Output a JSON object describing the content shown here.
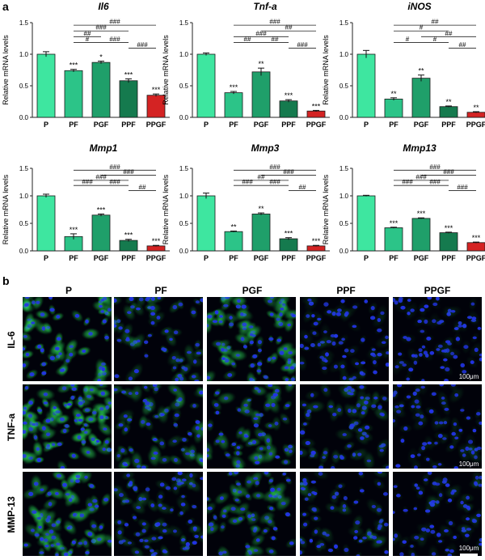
{
  "figure": {
    "panel_a_label": "a",
    "panel_b_label": "b"
  },
  "colors": {
    "P": "#3ee6a0",
    "PF": "#2cc488",
    "PGF": "#1f9f6a",
    "PPF": "#157a4e",
    "PPGF": "#d42323",
    "cell_green": "#1ec84a",
    "nucleus_blue": "#2233e6"
  },
  "chart_data": [
    {
      "type": "bar",
      "title": "Il6",
      "ylabel": "Relative mRNA levels",
      "xlabel": "",
      "ylim": [
        0,
        1.5
      ],
      "yticks": [
        "0.0",
        "0.5",
        "1.0",
        "1.5"
      ],
      "categories": [
        "P",
        "PF",
        "PGF",
        "PPF",
        "PPGF"
      ],
      "values": [
        1.0,
        0.74,
        0.87,
        0.58,
        0.35
      ],
      "errors": [
        0.04,
        0.02,
        0.02,
        0.03,
        0.02
      ],
      "sig": [
        "",
        "***",
        "*",
        "***",
        "***"
      ],
      "brackets": [
        {
          "from": 1,
          "to": 4,
          "label": "###",
          "level": 5
        },
        {
          "from": 1,
          "to": 3,
          "label": "###",
          "level": 4
        },
        {
          "from": 1,
          "to": 2,
          "label": "##",
          "level": 3
        },
        {
          "from": 1,
          "to": 2,
          "label": "#",
          "level": 2
        },
        {
          "from": 2,
          "to": 3,
          "label": "###",
          "level": 2
        },
        {
          "from": 3,
          "to": 4,
          "label": "###",
          "level": 1
        }
      ]
    },
    {
      "type": "bar",
      "title": "Tnf-a",
      "ylabel": "Relative mRNA levels",
      "xlabel": "",
      "ylim": [
        0,
        1.5
      ],
      "yticks": [
        "0.0",
        "0.5",
        "1.0",
        "1.5"
      ],
      "categories": [
        "P",
        "PF",
        "PGF",
        "PPF",
        "PPGF"
      ],
      "values": [
        1.0,
        0.39,
        0.72,
        0.26,
        0.1
      ],
      "errors": [
        0.02,
        0.02,
        0.06,
        0.02,
        0.01
      ],
      "sig": [
        "",
        "***",
        "**",
        "***",
        "***"
      ],
      "brackets": [
        {
          "from": 1,
          "to": 4,
          "label": "###",
          "level": 5
        },
        {
          "from": 2,
          "to": 4,
          "label": "##",
          "level": 4
        },
        {
          "from": 1,
          "to": 3,
          "label": "###",
          "level": 3
        },
        {
          "from": 1,
          "to": 2,
          "label": "##",
          "level": 2
        },
        {
          "from": 2,
          "to": 3,
          "label": "##",
          "level": 2
        },
        {
          "from": 3,
          "to": 4,
          "label": "###",
          "level": 1
        }
      ]
    },
    {
      "type": "bar",
      "title": "iNOS",
      "ylabel": "Relative mRNA levels",
      "xlabel": "",
      "ylim": [
        0,
        1.5
      ],
      "yticks": [
        "0.0",
        "0.5",
        "1.0",
        "1.5"
      ],
      "categories": [
        "P",
        "PF",
        "PGF",
        "PPF",
        "PPGF"
      ],
      "values": [
        1.0,
        0.29,
        0.62,
        0.17,
        0.08
      ],
      "errors": [
        0.06,
        0.02,
        0.05,
        0.01,
        0.01
      ],
      "sig": [
        "",
        "**",
        "**",
        "**",
        "**"
      ],
      "brackets": [
        {
          "from": 1,
          "to": 4,
          "label": "##",
          "level": 5
        },
        {
          "from": 1,
          "to": 3,
          "label": "#",
          "level": 4
        },
        {
          "from": 2,
          "to": 4,
          "label": "##",
          "level": 3
        },
        {
          "from": 1,
          "to": 2,
          "label": "#",
          "level": 2
        },
        {
          "from": 2,
          "to": 3,
          "label": "#",
          "level": 2
        },
        {
          "from": 3,
          "to": 4,
          "label": "##",
          "level": 1
        }
      ]
    },
    {
      "type": "bar",
      "title": "Mmp1",
      "ylabel": "Relative mRNA levels",
      "xlabel": "",
      "ylim": [
        0,
        1.5
      ],
      "yticks": [
        "0.0",
        "0.5",
        "1.0",
        "1.5"
      ],
      "categories": [
        "P",
        "PF",
        "PGF",
        "PPF",
        "PPGF"
      ],
      "values": [
        1.0,
        0.26,
        0.65,
        0.19,
        0.09
      ],
      "errors": [
        0.03,
        0.05,
        0.02,
        0.02,
        0.01
      ],
      "sig": [
        "",
        "***",
        "***",
        "***",
        "***"
      ],
      "brackets": [
        {
          "from": 1,
          "to": 4,
          "label": "###",
          "level": 5
        },
        {
          "from": 2,
          "to": 4,
          "label": "###",
          "level": 4
        },
        {
          "from": 1,
          "to": 3,
          "label": "###",
          "level": 3
        },
        {
          "from": 1,
          "to": 2,
          "label": "###",
          "level": 2
        },
        {
          "from": 2,
          "to": 3,
          "label": "###",
          "level": 2
        },
        {
          "from": 3,
          "to": 4,
          "label": "##",
          "level": 1
        }
      ]
    },
    {
      "type": "bar",
      "title": "Mmp3",
      "ylabel": "Relative mRNA levels",
      "xlabel": "",
      "ylim": [
        0,
        1.5
      ],
      "yticks": [
        "0.0",
        "0.5",
        "1.0",
        "1.5"
      ],
      "categories": [
        "P",
        "PF",
        "PGF",
        "PPF",
        "PPGF"
      ],
      "values": [
        1.0,
        0.35,
        0.67,
        0.22,
        0.09
      ],
      "errors": [
        0.05,
        0.01,
        0.02,
        0.02,
        0.01
      ],
      "sig": [
        "",
        "**",
        "**",
        "***",
        "***"
      ],
      "brackets": [
        {
          "from": 1,
          "to": 4,
          "label": "###",
          "level": 5
        },
        {
          "from": 2,
          "to": 4,
          "label": "###",
          "level": 4
        },
        {
          "from": 1,
          "to": 3,
          "label": "##",
          "level": 3
        },
        {
          "from": 1,
          "to": 2,
          "label": "###",
          "level": 2
        },
        {
          "from": 2,
          "to": 3,
          "label": "###",
          "level": 2
        },
        {
          "from": 3,
          "to": 4,
          "label": "##",
          "level": 1
        }
      ]
    },
    {
      "type": "bar",
      "title": "Mmp13",
      "ylabel": "Relative mRNA levels",
      "xlabel": "",
      "ylim": [
        0,
        1.5
      ],
      "yticks": [
        "0.0",
        "0.5",
        "1.0",
        "1.5"
      ],
      "categories": [
        "P",
        "PF",
        "PGF",
        "PPF",
        "PPGF"
      ],
      "values": [
        1.0,
        0.42,
        0.59,
        0.33,
        0.15
      ],
      "errors": [
        0.01,
        0.01,
        0.01,
        0.01,
        0.01
      ],
      "sig": [
        "",
        "***",
        "***",
        "***",
        "***"
      ],
      "brackets": [
        {
          "from": 1,
          "to": 4,
          "label": "###",
          "level": 5
        },
        {
          "from": 2,
          "to": 4,
          "label": "###",
          "level": 4
        },
        {
          "from": 1,
          "to": 3,
          "label": "###",
          "level": 3
        },
        {
          "from": 1,
          "to": 2,
          "label": "###",
          "level": 2
        },
        {
          "from": 2,
          "to": 3,
          "label": "###",
          "level": 2
        },
        {
          "from": 3,
          "to": 4,
          "label": "###",
          "level": 1
        }
      ]
    }
  ],
  "micrographs": {
    "columns": [
      "P",
      "PF",
      "PGF",
      "PPF",
      "PPGF"
    ],
    "rows": [
      "IL-6",
      "TNF-a",
      "MMP-13"
    ],
    "green_intensity": [
      [
        0.85,
        0.35,
        0.7,
        0.15,
        0.1
      ],
      [
        0.95,
        0.5,
        0.6,
        0.3,
        0.15
      ],
      [
        0.8,
        0.3,
        0.55,
        0.25,
        0.15
      ]
    ],
    "scale_bar_label": "100μm"
  }
}
